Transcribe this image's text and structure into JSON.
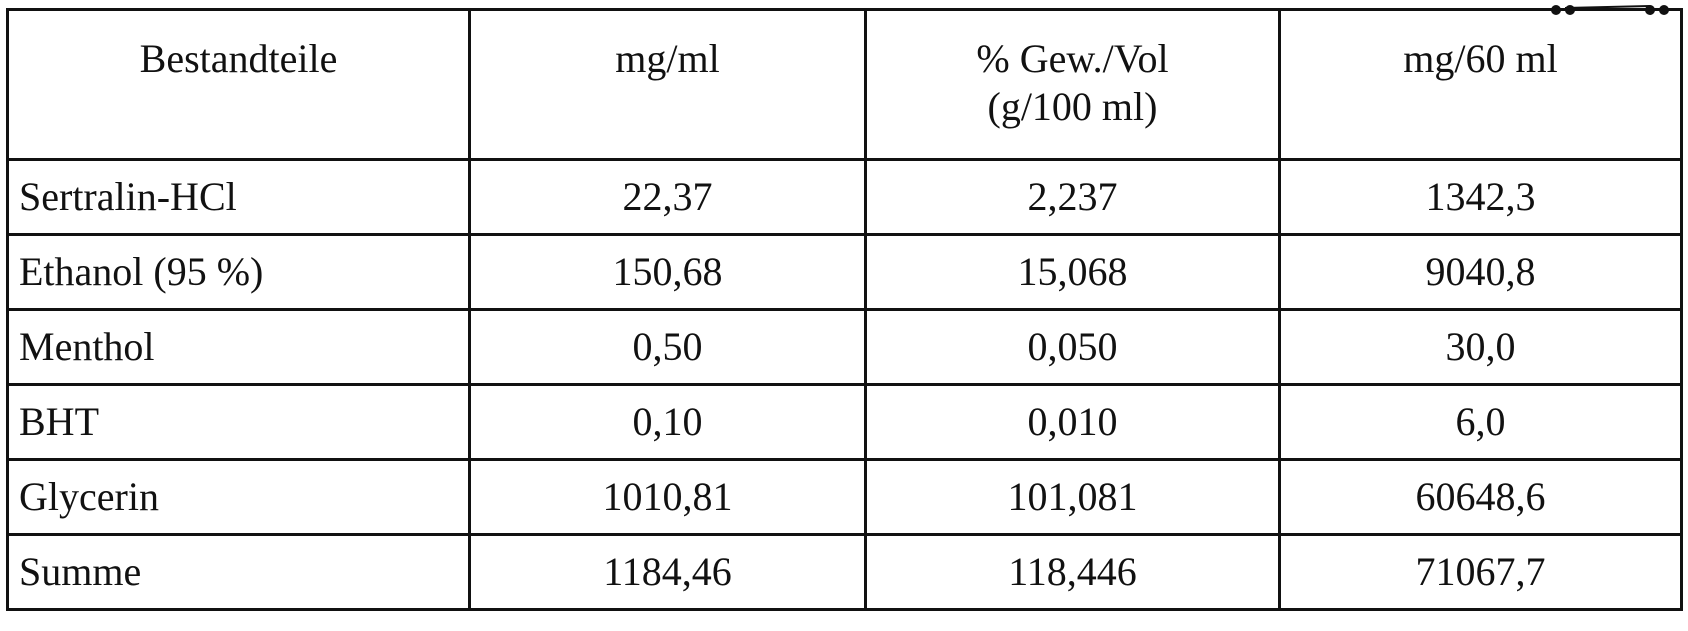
{
  "table": {
    "headers": [
      {
        "line1": "Bestandteile",
        "line2": ""
      },
      {
        "line1": "mg/ml",
        "line2": ""
      },
      {
        "line1": "% Gew./Vol",
        "line2": "(g/100 ml)"
      },
      {
        "line1": "mg/60 ml",
        "line2": ""
      }
    ],
    "rows": [
      {
        "name": "Sertralin-HCl",
        "mg_ml": "22,37",
        "pct": "2,237",
        "mg_60ml": "1342,3"
      },
      {
        "name": "Ethanol (95 %)",
        "mg_ml": "150,68",
        "pct": "15,068",
        "mg_60ml": "9040,8"
      },
      {
        "name": "Menthol",
        "mg_ml": "0,50",
        "pct": "0,050",
        "mg_60ml": "30,0"
      },
      {
        "name": "BHT",
        "mg_ml": "0,10",
        "pct": "0,010",
        "mg_60ml": "6,0"
      },
      {
        "name": "Glycerin",
        "mg_ml": "1010,81",
        "pct": "101,081",
        "mg_60ml": "60648,6"
      },
      {
        "name": "Summe",
        "mg_ml": "1184,46",
        "pct": "118,446",
        "mg_60ml": "71067,7"
      }
    ]
  }
}
